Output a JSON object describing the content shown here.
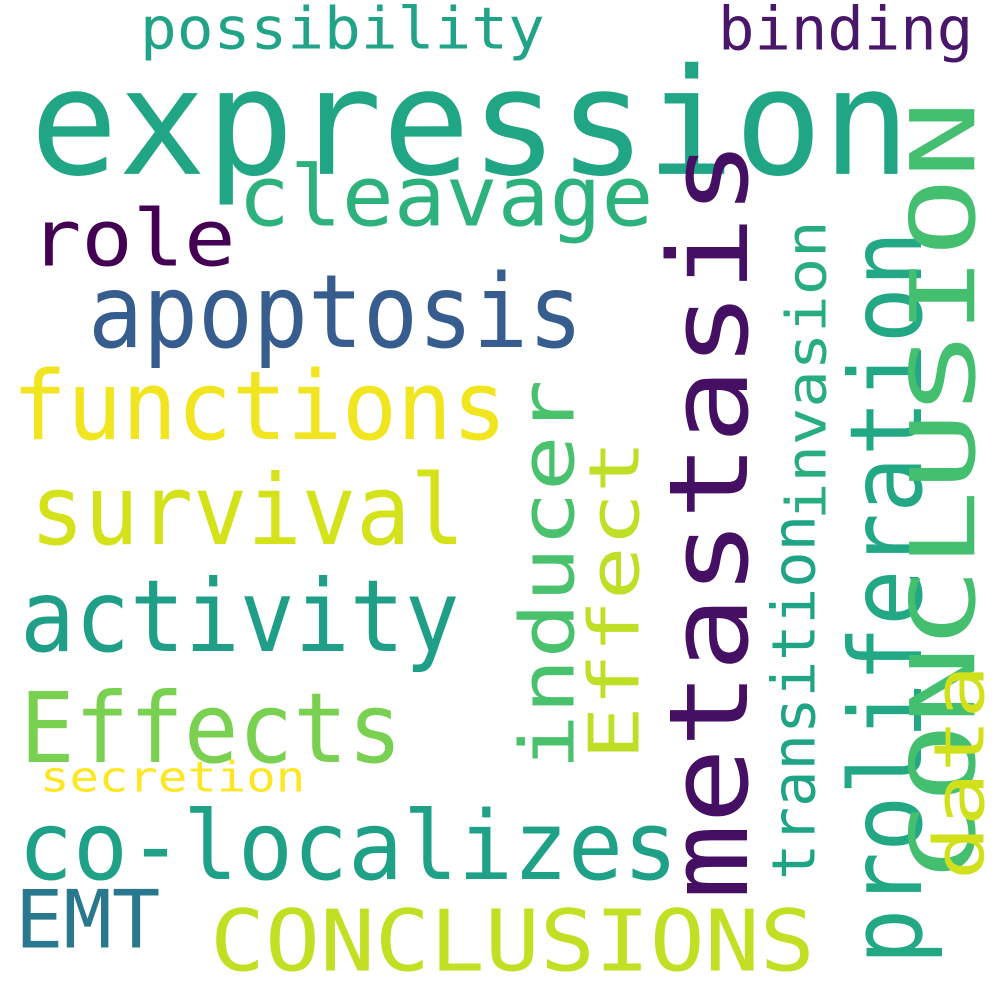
{
  "words": [
    {
      "text": "expression",
      "color": "#21a685",
      "orientation": "horizontal"
    },
    {
      "text": "metastasis",
      "color": "#450f64",
      "orientation": "vertical"
    },
    {
      "text": "CONCLUSIONS",
      "color": "#c2df23",
      "orientation": "horizontal"
    },
    {
      "text": "apoptosis",
      "color": "#365d8d",
      "orientation": "horizontal"
    },
    {
      "text": "functions",
      "color": "#f0e51e",
      "orientation": "horizontal"
    },
    {
      "text": "survival",
      "color": "#d4e21a",
      "orientation": "horizontal"
    },
    {
      "text": "activity",
      "color": "#1f9f88",
      "orientation": "horizontal"
    },
    {
      "text": "Effects",
      "color": "#7ad151",
      "orientation": "horizontal"
    },
    {
      "text": "co-localizes",
      "color": "#1fa187",
      "orientation": "horizontal"
    },
    {
      "text": "proliferation",
      "color": "#22a884",
      "orientation": "vertical"
    },
    {
      "text": "CONCLUSION",
      "color": "#44bf70",
      "orientation": "vertical"
    },
    {
      "text": "cleavage",
      "color": "#2db27d",
      "orientation": "horizontal"
    },
    {
      "text": "inducer",
      "color": "#4ac16d",
      "orientation": "vertical"
    },
    {
      "text": "Effect",
      "color": "#bddf26",
      "orientation": "vertical"
    },
    {
      "text": "role",
      "color": "#440154",
      "orientation": "horizontal"
    },
    {
      "text": "data",
      "color": "#d0e11c",
      "orientation": "vertical"
    },
    {
      "text": "EMT",
      "color": "#2a788e",
      "orientation": "horizontal"
    },
    {
      "text": "possibility",
      "color": "#20a386",
      "orientation": "horizontal"
    },
    {
      "text": "binding",
      "color": "#481769",
      "orientation": "horizontal"
    },
    {
      "text": "invasion",
      "color": "#27ad81",
      "orientation": "vertical"
    },
    {
      "text": "transition",
      "color": "#20a486",
      "orientation": "vertical"
    },
    {
      "text": "secretion",
      "color": "#fde725",
      "orientation": "horizontal"
    }
  ]
}
